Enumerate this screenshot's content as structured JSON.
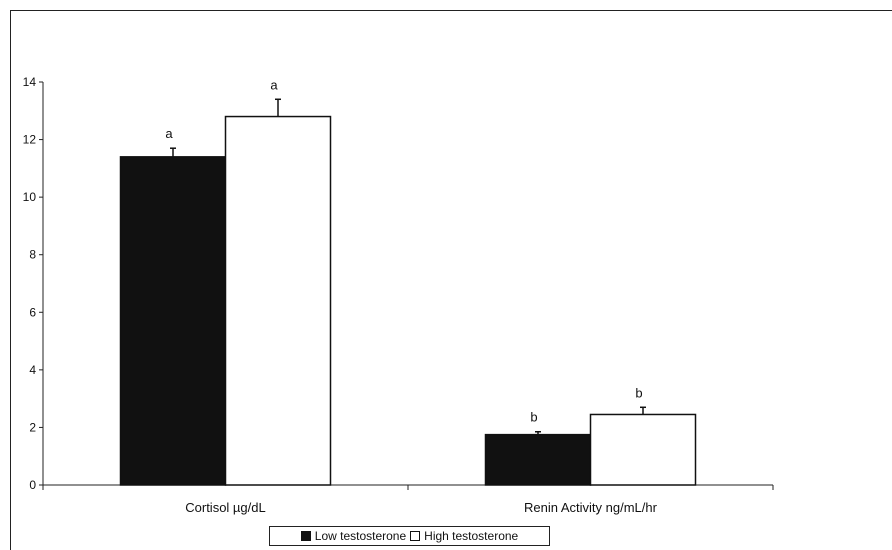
{
  "chart_data": {
    "type": "bar",
    "categories": [
      "Cortisol µg/dL",
      "Renin Activity ng/mL/hr"
    ],
    "series": [
      {
        "name": "Low testosterone",
        "values": [
          11.4,
          1.75
        ],
        "errors": [
          0.3,
          0.1
        ],
        "annotations": [
          "a",
          "b"
        ],
        "color": "#111111"
      },
      {
        "name": "High testosterone",
        "values": [
          12.8,
          2.45
        ],
        "errors": [
          0.6,
          0.25
        ],
        "annotations": [
          "a",
          "b"
        ],
        "color": "#ffffff"
      }
    ],
    "title": "",
    "xlabel": "",
    "ylabel": "",
    "ylim": [
      0,
      14
    ],
    "yticks": [
      0,
      2,
      4,
      6,
      8,
      10,
      12,
      14
    ],
    "grid": false,
    "legend_position": "bottom-center"
  }
}
